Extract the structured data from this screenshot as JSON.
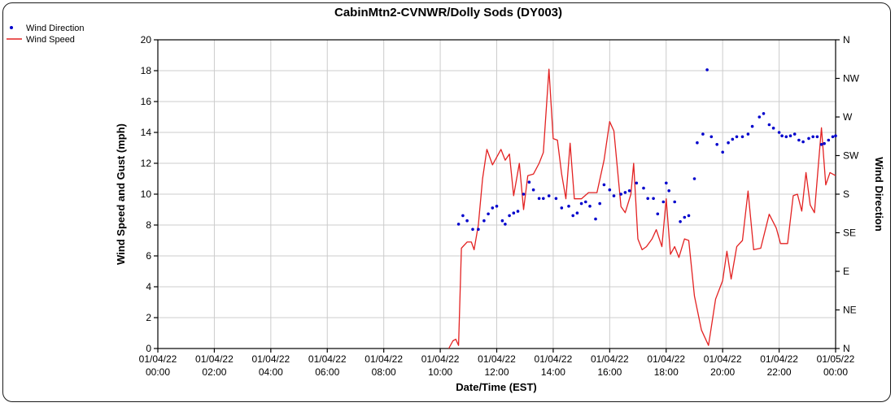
{
  "window": {
    "title": "CabinMtn2-CVNWR/Dolly Sods (DY003)"
  },
  "legend": {
    "items": [
      {
        "label": "Wind Direction",
        "marker": "dot",
        "color": "#0000cc"
      },
      {
        "label": "Wind Speed",
        "marker": "line",
        "color": "#e32222"
      }
    ]
  },
  "chart_data": {
    "type": "line+scatter",
    "title": "CabinMtn2-CVNWR/Dolly Sods (DY003)",
    "xlabel": "Date/Time (EST)",
    "ylabel_left": "Wind Speed and Gust (mph)",
    "ylabel_right": "Wind Direction",
    "x_unit": "hours since 01/04/22 00:00 EST",
    "xlim": [
      0,
      24
    ],
    "ylim_left": [
      0,
      20
    ],
    "grid": true,
    "legend_position": "top-left",
    "colors": {
      "speed": "#e32222",
      "direction": "#0000cc",
      "grid": "#cccccc",
      "axis": "#000000"
    },
    "x_ticks": [
      {
        "hour": 0,
        "line1": "01/04/22",
        "line2": "00:00"
      },
      {
        "hour": 2,
        "line1": "01/04/22",
        "line2": "02:00"
      },
      {
        "hour": 4,
        "line1": "01/04/22",
        "line2": "04:00"
      },
      {
        "hour": 6,
        "line1": "01/04/22",
        "line2": "06:00"
      },
      {
        "hour": 8,
        "line1": "01/04/22",
        "line2": "08:00"
      },
      {
        "hour": 10,
        "line1": "01/04/22",
        "line2": "10:00"
      },
      {
        "hour": 12,
        "line1": "01/04/22",
        "line2": "12:00"
      },
      {
        "hour": 14,
        "line1": "01/04/22",
        "line2": "14:00"
      },
      {
        "hour": 16,
        "line1": "01/04/22",
        "line2": "16:00"
      },
      {
        "hour": 18,
        "line1": "01/04/22",
        "line2": "18:00"
      },
      {
        "hour": 20,
        "line1": "01/04/22",
        "line2": "20:00"
      },
      {
        "hour": 22,
        "line1": "01/04/22",
        "line2": "22:00"
      },
      {
        "hour": 24,
        "line1": "01/05/22",
        "line2": "00:00"
      }
    ],
    "y_ticks_left": [
      0,
      2,
      4,
      6,
      8,
      10,
      12,
      14,
      16,
      18,
      20
    ],
    "y_ticks_right": [
      "N",
      "NE",
      "E",
      "SE",
      "S",
      "SW",
      "W",
      "NW",
      "N"
    ],
    "series": [
      {
        "name": "Wind Speed",
        "type": "line",
        "axis": "left",
        "units": "mph",
        "points": [
          [
            10.3,
            0.0
          ],
          [
            10.45,
            0.5
          ],
          [
            10.55,
            0.6
          ],
          [
            10.65,
            0.2
          ],
          [
            10.75,
            6.5
          ],
          [
            10.95,
            6.9
          ],
          [
            11.1,
            6.9
          ],
          [
            11.2,
            6.4
          ],
          [
            11.35,
            8.0
          ],
          [
            11.5,
            11.0
          ],
          [
            11.65,
            12.9
          ],
          [
            11.85,
            11.9
          ],
          [
            12.0,
            12.4
          ],
          [
            12.15,
            12.9
          ],
          [
            12.3,
            12.2
          ],
          [
            12.45,
            12.6
          ],
          [
            12.6,
            9.9
          ],
          [
            12.8,
            12.0
          ],
          [
            12.95,
            9.0
          ],
          [
            13.1,
            11.2
          ],
          [
            13.3,
            11.3
          ],
          [
            13.5,
            12.0
          ],
          [
            13.65,
            12.7
          ],
          [
            13.85,
            18.1
          ],
          [
            14.0,
            13.6
          ],
          [
            14.15,
            13.5
          ],
          [
            14.3,
            11.3
          ],
          [
            14.45,
            9.7
          ],
          [
            14.6,
            13.3
          ],
          [
            14.75,
            9.7
          ],
          [
            15.0,
            9.7
          ],
          [
            15.25,
            10.1
          ],
          [
            15.55,
            10.1
          ],
          [
            15.8,
            12.2
          ],
          [
            16.0,
            14.7
          ],
          [
            16.15,
            14.1
          ],
          [
            16.4,
            9.2
          ],
          [
            16.55,
            8.8
          ],
          [
            16.75,
            10.0
          ],
          [
            16.85,
            12.0
          ],
          [
            17.0,
            7.1
          ],
          [
            17.15,
            6.4
          ],
          [
            17.3,
            6.6
          ],
          [
            17.5,
            7.1
          ],
          [
            17.65,
            7.7
          ],
          [
            17.85,
            6.6
          ],
          [
            18.0,
            9.7
          ],
          [
            18.15,
            6.1
          ],
          [
            18.3,
            6.6
          ],
          [
            18.45,
            5.9
          ],
          [
            18.65,
            7.1
          ],
          [
            18.8,
            7.0
          ],
          [
            19.0,
            3.4
          ],
          [
            19.25,
            1.2
          ],
          [
            19.5,
            0.2
          ],
          [
            19.75,
            3.2
          ],
          [
            20.0,
            4.4
          ],
          [
            20.15,
            6.3
          ],
          [
            20.3,
            4.5
          ],
          [
            20.5,
            6.6
          ],
          [
            20.7,
            7.0
          ],
          [
            20.9,
            10.2
          ],
          [
            21.1,
            6.4
          ],
          [
            21.35,
            6.5
          ],
          [
            21.65,
            8.7
          ],
          [
            21.9,
            7.8
          ],
          [
            22.05,
            6.8
          ],
          [
            22.3,
            6.8
          ],
          [
            22.5,
            9.9
          ],
          [
            22.65,
            10.0
          ],
          [
            22.8,
            8.9
          ],
          [
            22.95,
            11.4
          ],
          [
            23.1,
            9.3
          ],
          [
            23.25,
            8.8
          ],
          [
            23.5,
            14.3
          ],
          [
            23.65,
            10.6
          ],
          [
            23.8,
            11.4
          ],
          [
            24.0,
            11.2
          ]
        ]
      },
      {
        "name": "Wind Direction",
        "type": "scatter",
        "axis": "right",
        "units": "degrees",
        "points": [
          [
            10.65,
            145
          ],
          [
            10.8,
            155
          ],
          [
            10.95,
            149
          ],
          [
            11.15,
            139
          ],
          [
            11.35,
            139
          ],
          [
            11.55,
            149
          ],
          [
            11.7,
            157
          ],
          [
            11.85,
            164
          ],
          [
            12.0,
            166
          ],
          [
            12.2,
            149
          ],
          [
            12.3,
            145
          ],
          [
            12.45,
            155
          ],
          [
            12.6,
            158
          ],
          [
            12.75,
            160
          ],
          [
            12.95,
            180
          ],
          [
            13.15,
            194
          ],
          [
            13.3,
            185
          ],
          [
            13.5,
            175
          ],
          [
            13.65,
            175
          ],
          [
            13.85,
            178
          ],
          [
            14.1,
            175
          ],
          [
            14.3,
            164
          ],
          [
            14.55,
            166
          ],
          [
            14.7,
            155
          ],
          [
            14.85,
            158
          ],
          [
            15.0,
            169
          ],
          [
            15.15,
            171
          ],
          [
            15.3,
            166
          ],
          [
            15.5,
            151
          ],
          [
            15.65,
            169
          ],
          [
            15.8,
            191
          ],
          [
            16.0,
            185
          ],
          [
            16.15,
            178
          ],
          [
            16.4,
            180
          ],
          [
            16.55,
            182
          ],
          [
            16.7,
            184
          ],
          [
            16.95,
            193
          ],
          [
            17.2,
            187
          ],
          [
            17.35,
            175
          ],
          [
            17.55,
            175
          ],
          [
            17.7,
            157
          ],
          [
            17.9,
            171
          ],
          [
            18.0,
            193
          ],
          [
            18.1,
            184
          ],
          [
            18.3,
            171
          ],
          [
            18.5,
            148
          ],
          [
            18.65,
            153
          ],
          [
            18.8,
            155
          ],
          [
            19.0,
            198
          ],
          [
            19.1,
            240
          ],
          [
            19.3,
            250
          ],
          [
            19.45,
            325
          ],
          [
            19.6,
            247
          ],
          [
            19.8,
            238
          ],
          [
            20.0,
            229
          ],
          [
            20.2,
            240
          ],
          [
            20.35,
            244
          ],
          [
            20.5,
            247
          ],
          [
            20.7,
            247
          ],
          [
            20.9,
            250
          ],
          [
            21.05,
            259
          ],
          [
            21.3,
            270
          ],
          [
            21.45,
            274
          ],
          [
            21.65,
            261
          ],
          [
            21.8,
            257
          ],
          [
            22.0,
            252
          ],
          [
            22.1,
            248
          ],
          [
            22.25,
            247
          ],
          [
            22.4,
            248
          ],
          [
            22.55,
            250
          ],
          [
            22.7,
            243
          ],
          [
            22.85,
            241
          ],
          [
            23.05,
            245
          ],
          [
            23.2,
            247
          ],
          [
            23.35,
            247
          ],
          [
            23.5,
            238
          ],
          [
            23.6,
            239
          ],
          [
            23.75,
            243
          ],
          [
            23.9,
            247
          ],
          [
            24.0,
            248
          ]
        ]
      }
    ]
  }
}
